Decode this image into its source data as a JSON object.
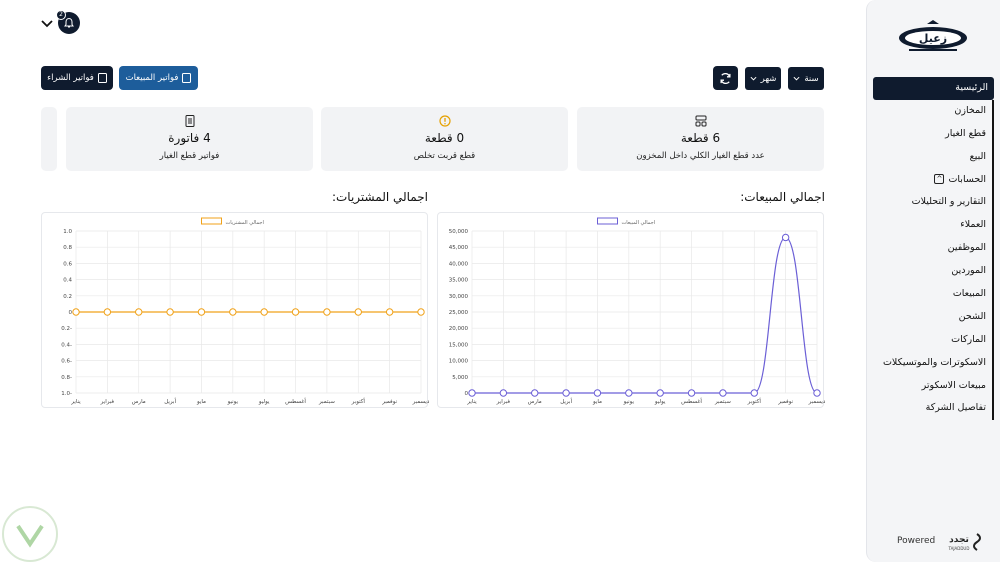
{
  "header": {
    "notification_count": "2"
  },
  "toolbar": {
    "purchase_invoices_label": "فواتير الشراء",
    "sales_invoices_label": "فواتير المبيعات",
    "month_select": "شهر",
    "year_select": "سنة"
  },
  "cards": [
    {
      "value": "6 قطعة",
      "label": "عدد قطع الغيار الكلي داخل المخزون",
      "icon": "grid-icon"
    },
    {
      "value": "0 قطعة",
      "label": "قطع قربت تخلص",
      "icon": "warning-icon"
    },
    {
      "value": "4 فاتورة",
      "label": "فواتير قطع الغيار",
      "icon": "document-icon"
    }
  ],
  "sidebar": {
    "items": [
      {
        "label": "الرئيسية",
        "active": true
      },
      {
        "label": "المخازن"
      },
      {
        "label": "قطع الغيار"
      },
      {
        "label": "البيع"
      },
      {
        "label": "الحسابات",
        "expandable": true
      },
      {
        "label": "التقارير و التحليلات"
      },
      {
        "label": "العملاء"
      },
      {
        "label": "الموظفين"
      },
      {
        "label": "الموردين"
      },
      {
        "label": "المبيعات"
      },
      {
        "label": "الشحن"
      },
      {
        "label": "الماركات"
      },
      {
        "label": "الاسكوترات والموتسيكلات"
      },
      {
        "label": "مبيعات الاسكوتر"
      },
      {
        "label": "تفاصيل الشركة"
      }
    ],
    "powered_label": "Powered",
    "brand_text": "تجدد",
    "brand_sub": "TAJADDUD",
    "logo_text": "زعيل"
  },
  "charts": {
    "sales_title": "اجمالي المبيعات:",
    "purchases_title": "اجمالي المشتريات:"
  },
  "chart_data": [
    {
      "type": "line",
      "title": "اجمالي المبيعات:",
      "series": [
        {
          "name": "اجمالي المبيعات",
          "values": [
            0,
            0,
            0,
            0,
            0,
            0,
            0,
            0,
            0,
            0,
            48000,
            0
          ]
        }
      ],
      "categories": [
        "يناير",
        "فبراير",
        "مارس",
        "أبريل",
        "مايو",
        "يونيو",
        "يوليو",
        "أغسطس",
        "سبتمبر",
        "أكتوبر",
        "نوفمبر",
        "ديسمبر"
      ],
      "yticks": [
        "0",
        "5,000",
        "10,000",
        "15,000",
        "20,000",
        "25,000",
        "30,000",
        "35,000",
        "40,000",
        "45,000",
        "50,000"
      ],
      "ylim": [
        0,
        50000
      ],
      "color": "#6b5fd6",
      "grid": true,
      "legend": "top"
    },
    {
      "type": "line",
      "title": "اجمالي المشتريات:",
      "series": [
        {
          "name": "اجمالي المشتريات",
          "values": [
            0,
            0,
            0,
            0,
            0,
            0,
            0,
            0,
            0,
            0,
            0,
            0
          ]
        }
      ],
      "categories": [
        "يناير",
        "فبراير",
        "مارس",
        "أبريل",
        "مايو",
        "يونيو",
        "يوليو",
        "أغسطس",
        "سبتمبر",
        "أكتوبر",
        "نوفمبر",
        "ديسمبر"
      ],
      "yticks": [
        "1.0-",
        "0.8-",
        "0.6-",
        "0.4-",
        "0.2-",
        "0",
        "0.2",
        "0.4",
        "0.6",
        "0.8",
        "1.0"
      ],
      "ylim": [
        -1,
        1
      ],
      "color": "#f0a21a",
      "grid": true,
      "legend": "top"
    }
  ]
}
